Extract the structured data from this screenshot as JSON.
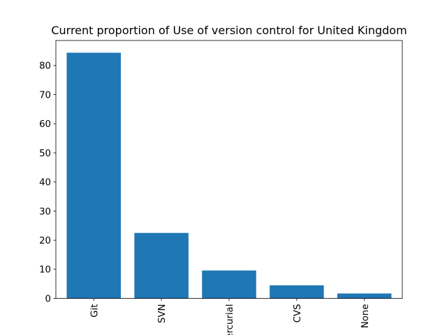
{
  "chart_data": {
    "type": "bar",
    "title": "Current proportion of Use of version control for United Kingdom",
    "xlabel": "",
    "ylabel": "",
    "categories": [
      "Git",
      "SVN",
      "Mercurial",
      "CVS",
      "None"
    ],
    "values": [
      84.4,
      22.5,
      9.6,
      4.5,
      1.7
    ],
    "ylim": [
      0,
      88.6
    ],
    "yticks": [
      0,
      10,
      20,
      30,
      40,
      50,
      60,
      70,
      80
    ],
    "x_tick_rotation": "vertical",
    "grid": false,
    "legend": "none",
    "bar_color": "#1f77b4"
  }
}
